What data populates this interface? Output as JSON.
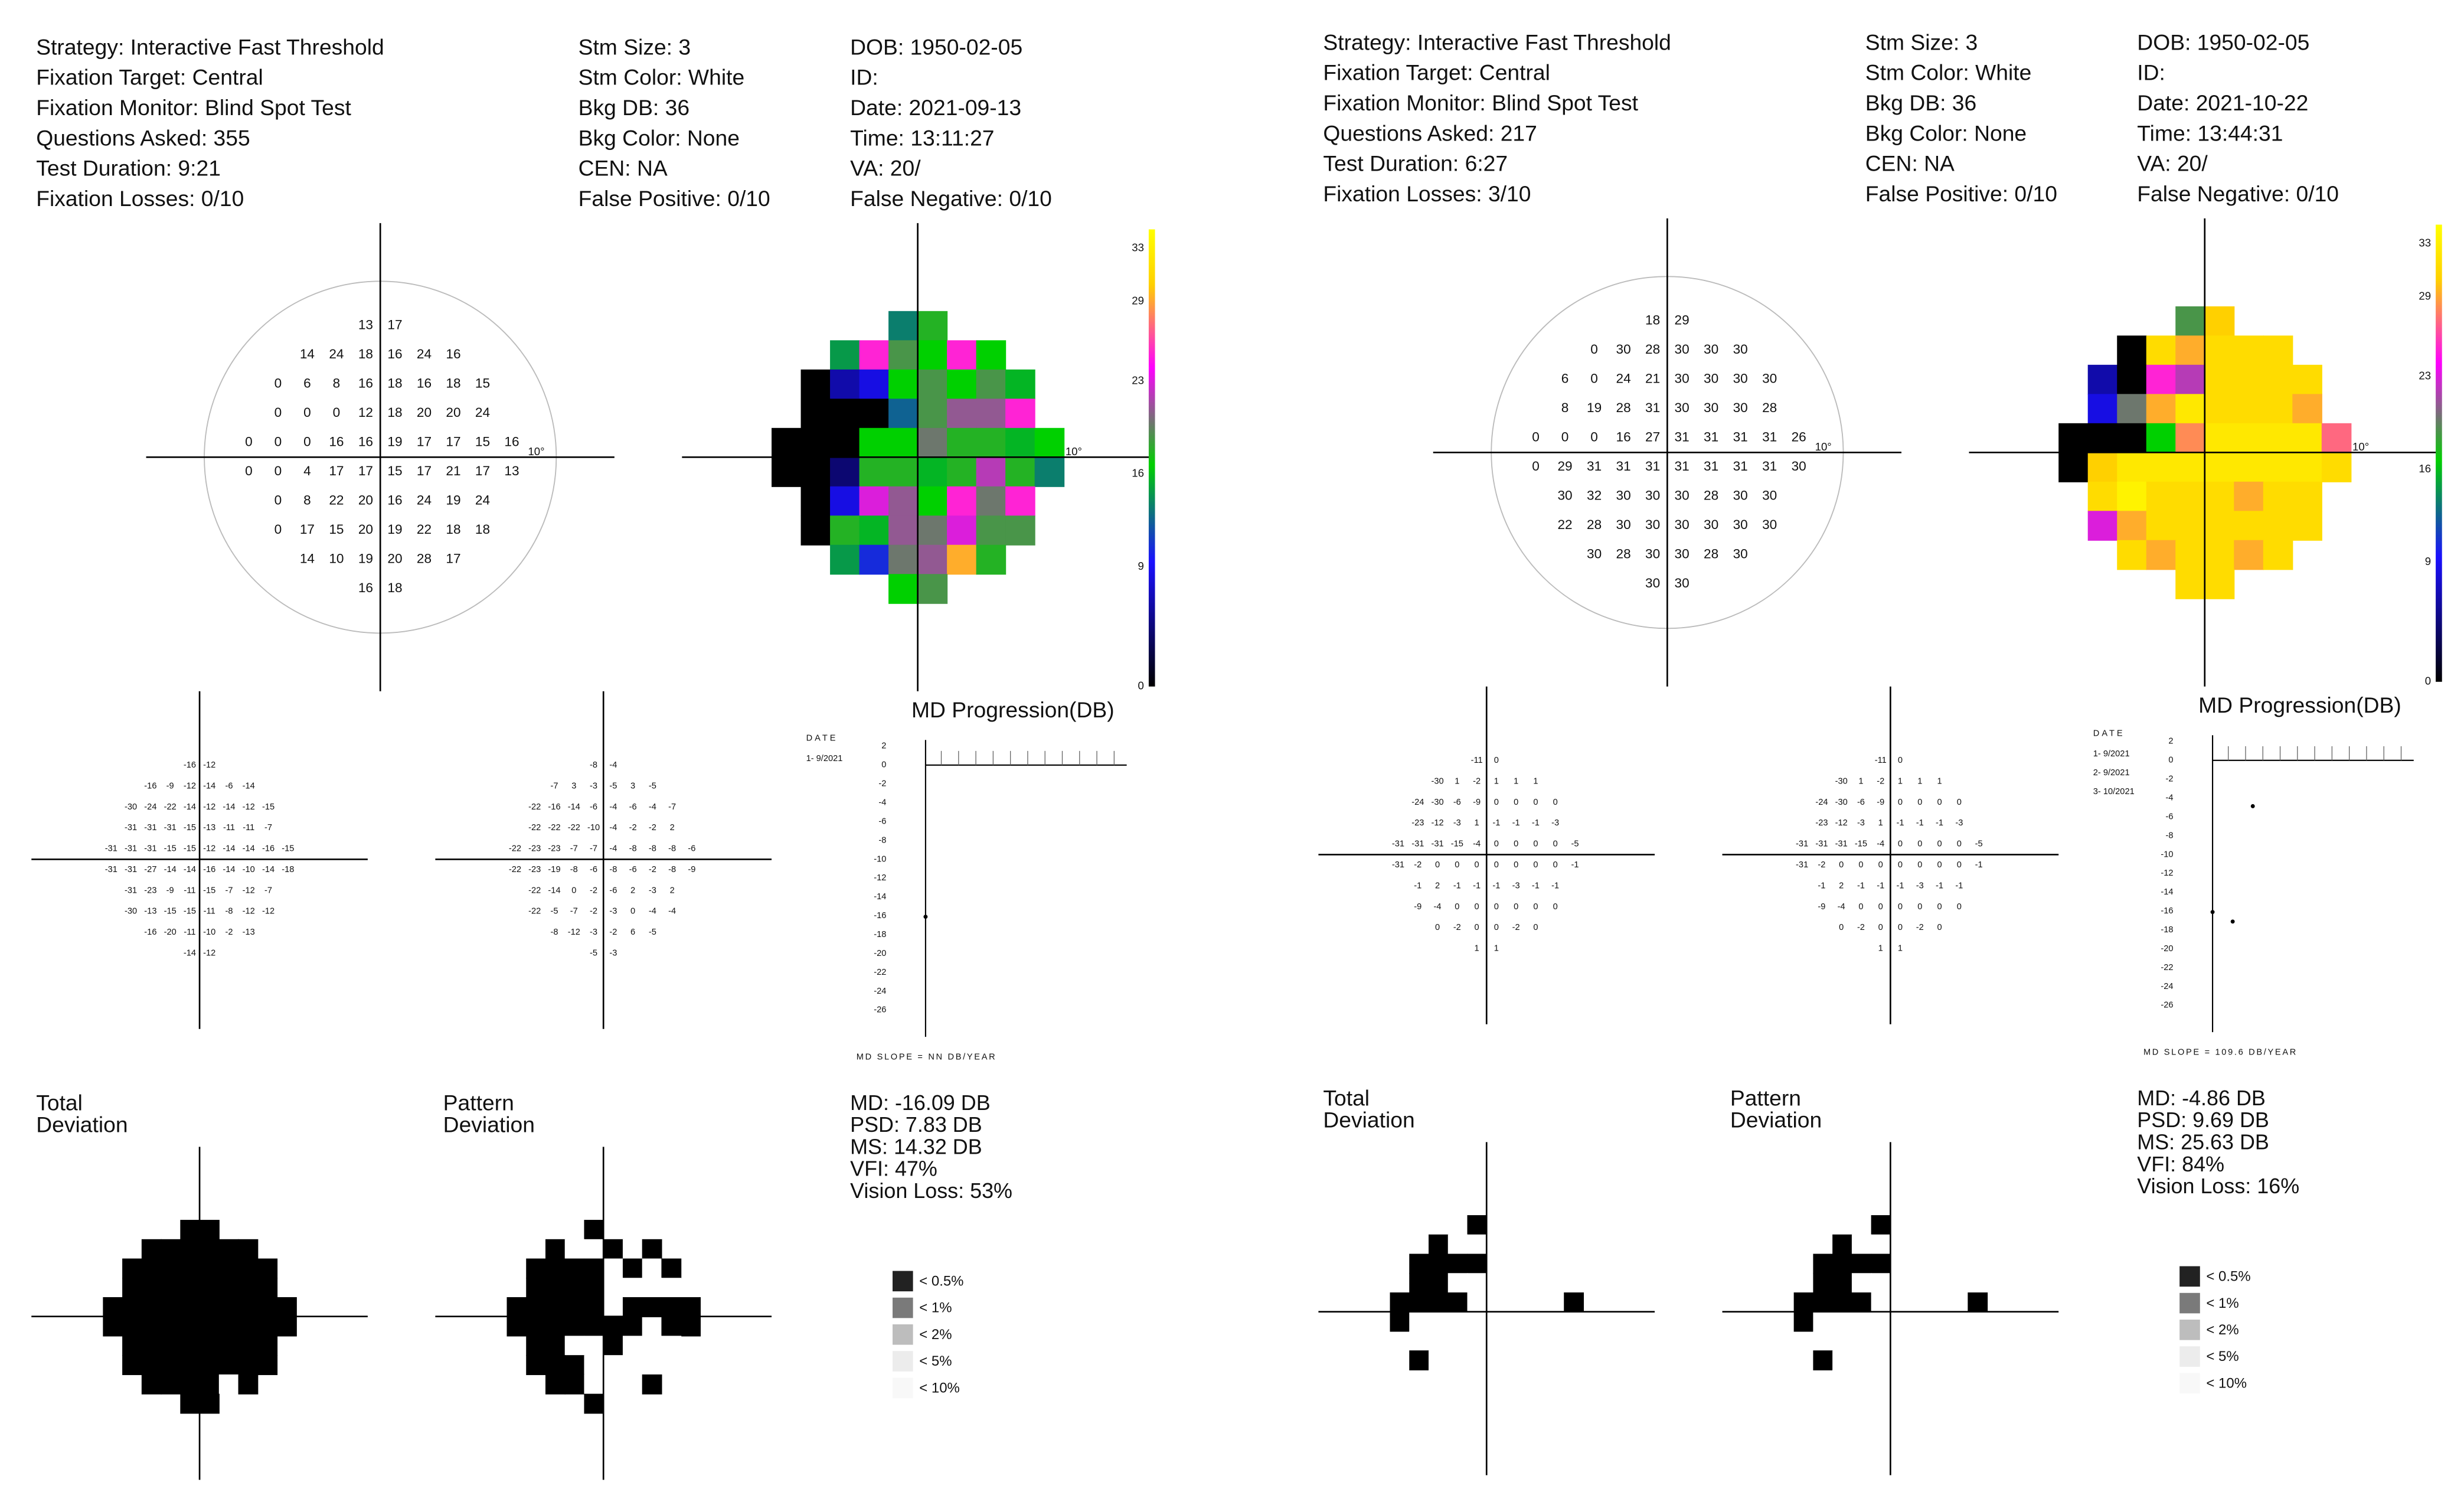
{
  "reports": [
    {
      "header": {
        "col1": [
          "Strategy: Interactive Fast Threshold",
          "Fixation Target: Central",
          "Fixation Monitor: Blind Spot Test",
          "Questions Asked: 355",
          "Test Duration: 9:21",
          "Fixation Losses: 0/10"
        ],
        "col2": [
          "Stm Size: 3",
          "Stm Color: White",
          "Bkg DB: 36",
          "Bkg Color: None",
          "CEN: NA",
          "False Positive: 0/10"
        ],
        "col3": [
          "DOB: 1950-02-05",
          "ID:",
          "Date: 2021-09-13",
          "Time: 13:11:27",
          "VA: 20/",
          "False Negative: 0/10"
        ]
      },
      "degree_label": "10°",
      "threshold": [
        [
          13,
          17
        ],
        [
          14,
          24,
          18,
          16,
          24,
          16
        ],
        [
          0,
          6,
          8,
          16,
          18,
          16,
          18,
          15
        ],
        [
          0,
          0,
          0,
          12,
          18,
          20,
          20,
          24
        ],
        [
          0,
          0,
          0,
          16,
          16,
          19,
          17,
          17,
          15,
          16
        ],
        [
          0,
          0,
          4,
          17,
          17,
          15,
          17,
          21,
          17,
          13
        ],
        [
          0,
          8,
          22,
          20,
          16,
          24,
          19,
          24
        ],
        [
          0,
          17,
          15,
          20,
          19,
          22,
          18,
          18
        ],
        [
          14,
          10,
          19,
          20,
          28,
          17
        ],
        [
          16,
          18
        ]
      ],
      "colorbar": {
        "ticks": [
          0,
          9,
          16,
          23,
          29,
          33
        ],
        "colors": [
          "#000000",
          "#1a10ff",
          "#00d000",
          "#ff00ff",
          "#ffd000",
          "#ffff00"
        ]
      },
      "total_deviation": [
        [
          -16,
          -12
        ],
        [
          -16,
          -9,
          -12,
          -14,
          -6,
          -14
        ],
        [
          -30,
          -24,
          -22,
          -14,
          -12,
          -14,
          -12,
          -15
        ],
        [
          -31,
          -31,
          -31,
          -15,
          -13,
          -11,
          -11,
          -7
        ],
        [
          -31,
          -31,
          -31,
          -15,
          -15,
          -12,
          -14,
          -14,
          -16,
          -15
        ],
        [
          -31,
          -31,
          -27,
          -14,
          -14,
          -16,
          -14,
          -10,
          -14,
          -18
        ],
        [
          -31,
          -23,
          -9,
          -11,
          -15,
          -7,
          -12,
          -7
        ],
        [
          -30,
          -13,
          -15,
          -15,
          -11,
          -8,
          -12,
          -12
        ],
        [
          -16,
          -20,
          -11,
          -10,
          -2,
          -13
        ],
        [
          -14,
          -12
        ]
      ],
      "pattern_deviation": [
        [
          -8,
          -4
        ],
        [
          -7,
          3,
          -3,
          -5,
          3,
          -5
        ],
        [
          -22,
          -16,
          -14,
          -6,
          -4,
          -6,
          -4,
          -7
        ],
        [
          -22,
          -22,
          -22,
          -10,
          -4,
          -2,
          -2,
          2
        ],
        [
          -22,
          -23,
          -23,
          -7,
          -7,
          -4,
          -8,
          -8,
          -8,
          -6
        ],
        [
          -22,
          -23,
          -19,
          -8,
          -6,
          -8,
          -6,
          -2,
          -8,
          -9
        ],
        [
          -22,
          -14,
          0,
          -2,
          -6,
          2,
          -3,
          2
        ],
        [
          -22,
          -5,
          -7,
          -2,
          -3,
          0,
          -4,
          -4
        ],
        [
          -8,
          -12,
          -3,
          -2,
          6,
          -5
        ],
        [
          -5,
          -3
        ]
      ],
      "md_progression": {
        "title": "MD Progression(DB)",
        "date_label": "DATE",
        "dates": [
          "1- 9/2021"
        ],
        "values": [
          -16.09
        ],
        "ylim": [
          -26,
          2
        ],
        "yticks": [
          2,
          0,
          -2,
          -4,
          -6,
          -8,
          -10,
          -12,
          -14,
          -16,
          -18,
          -20,
          -22,
          -24,
          -26
        ],
        "slope_label": "MD SLOPE = NN DB/YEAR"
      },
      "total_label": [
        "Total",
        "Deviation"
      ],
      "pattern_label": [
        "Pattern",
        "Deviation"
      ],
      "stats": [
        "MD: -16.09 DB",
        "PSD: 7.83 DB",
        "MS: 14.32 DB",
        "VFI: 47%",
        "Vision Loss: 53%"
      ],
      "legend": {
        "labels": [
          "< 0.5%",
          "< 1%",
          "< 2%",
          "< 5%",
          "< 10%"
        ],
        "colors": [
          "#222222",
          "#7a7a7a",
          "#bdbdbd",
          "#ececec",
          "#f8f8f8"
        ]
      }
    },
    {
      "header": {
        "col1": [
          "Strategy: Interactive Fast Threshold",
          "Fixation Target: Central",
          "Fixation Monitor: Blind Spot Test",
          "Questions Asked: 217",
          "Test Duration: 6:27",
          "Fixation Losses: 3/10"
        ],
        "col2": [
          "Stm Size: 3",
          "Stm Color: White",
          "Bkg DB: 36",
          "Bkg Color: None",
          "CEN: NA",
          "False Positive: 0/10"
        ],
        "col3": [
          "DOB: 1950-02-05",
          "ID:",
          "Date: 2021-10-22",
          "Time: 13:44:31",
          "VA: 20/",
          "False Negative: 0/10"
        ]
      },
      "degree_label": "10°",
      "threshold": [
        [
          18,
          29
        ],
        [
          0,
          30,
          28,
          30,
          30,
          30
        ],
        [
          6,
          0,
          24,
          21,
          30,
          30,
          30,
          30
        ],
        [
          8,
          19,
          28,
          31,
          30,
          30,
          30,
          28
        ],
        [
          0,
          0,
          0,
          16,
          27,
          31,
          31,
          31,
          31,
          26
        ],
        [
          0,
          29,
          31,
          31,
          31,
          31,
          31,
          31,
          31,
          30
        ],
        [
          30,
          32,
          30,
          30,
          30,
          28,
          30,
          30
        ],
        [
          22,
          28,
          30,
          30,
          30,
          30,
          30,
          30
        ],
        [
          30,
          28,
          30,
          30,
          28,
          30
        ],
        [
          30,
          30
        ]
      ],
      "colorbar": {
        "ticks": [
          0,
          9,
          16,
          23,
          29,
          33
        ],
        "colors": [
          "#000000",
          "#1a10ff",
          "#00d000",
          "#ff00ff",
          "#ffd000",
          "#ffff00"
        ]
      },
      "total_deviation": [
        [
          -11,
          0
        ],
        [
          -30,
          1,
          -2,
          1,
          1,
          1
        ],
        [
          -24,
          -30,
          -6,
          -9,
          0,
          0,
          0,
          0
        ],
        [
          -23,
          -12,
          -3,
          1,
          -1,
          -1,
          -1,
          -3
        ],
        [
          -31,
          -31,
          -31,
          -15,
          -4,
          0,
          0,
          0,
          0,
          -5
        ],
        [
          -31,
          -2,
          0,
          0,
          0,
          0,
          0,
          0,
          0,
          -1
        ],
        [
          -1,
          2,
          -1,
          -1,
          -1,
          -3,
          -1,
          -1
        ],
        [
          -9,
          -4,
          0,
          0,
          0,
          0,
          0,
          0
        ],
        [
          0,
          -2,
          0,
          0,
          -2,
          0
        ],
        [
          1,
          1
        ]
      ],
      "pattern_deviation": [
        [
          -11,
          0
        ],
        [
          -30,
          1,
          -2,
          1,
          1,
          1
        ],
        [
          -24,
          -30,
          -6,
          -9,
          0,
          0,
          0,
          0
        ],
        [
          -23,
          -12,
          -3,
          1,
          -1,
          -1,
          -1,
          -3
        ],
        [
          -31,
          -31,
          -31,
          -15,
          -4,
          0,
          0,
          0,
          0,
          -5
        ],
        [
          -31,
          -2,
          0,
          0,
          0,
          0,
          0,
          0,
          0,
          -1
        ],
        [
          -1,
          2,
          -1,
          -1,
          -1,
          -3,
          -1,
          -1
        ],
        [
          -9,
          -4,
          0,
          0,
          0,
          0,
          0,
          0
        ],
        [
          0,
          -2,
          0,
          0,
          -2,
          0
        ],
        [
          1,
          1
        ]
      ],
      "md_progression": {
        "title": "MD Progression(DB)",
        "date_label": "DATE",
        "dates": [
          "1- 9/2021",
          "2- 9/2021",
          "3- 10/2021"
        ],
        "values": [
          -16.09,
          -17.1,
          -4.86
        ],
        "ylim": [
          -26,
          2
        ],
        "yticks": [
          2,
          0,
          -2,
          -4,
          -6,
          -8,
          -10,
          -12,
          -14,
          -16,
          -18,
          -20,
          -22,
          -24,
          -26
        ],
        "slope_label": "MD SLOPE = 109.6 DB/YEAR"
      },
      "total_label": [
        "Total",
        "Deviation"
      ],
      "pattern_label": [
        "Pattern",
        "Deviation"
      ],
      "stats": [
        "MD: -4.86 DB",
        "PSD: 9.69 DB",
        "MS: 25.63 DB",
        "VFI: 84%",
        "Vision Loss: 16%"
      ],
      "legend": {
        "labels": [
          "< 0.5%",
          "< 1%",
          "< 2%",
          "< 5%",
          "< 10%"
        ],
        "colors": [
          "#222222",
          "#7a7a7a",
          "#bdbdbd",
          "#ececec",
          "#f8f8f8"
        ]
      }
    }
  ]
}
